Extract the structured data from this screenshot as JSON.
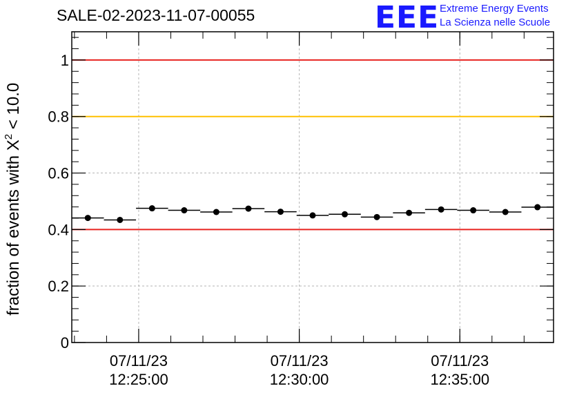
{
  "header": {
    "run_id": "SALE-02-2023-11-07-00055"
  },
  "logo": {
    "letters": "EEE",
    "line1": "Extreme Energy Events",
    "line2": "La Scienza nelle Scuole",
    "color": "#1a1aff"
  },
  "chart_data": {
    "type": "scatter",
    "ylabel": "fraction of events with χ² < 10.0",
    "ylabel_parts": {
      "prefix": "fraction of events with X",
      "sup": "2",
      "suffix": " < 10.0"
    },
    "ylim": [
      0,
      1.1
    ],
    "yticks": [
      0,
      0.2,
      0.4,
      0.6,
      0.8,
      1
    ],
    "ytick_labels": [
      "0",
      "0.2",
      "0.4",
      "0.6",
      "0.8",
      "1"
    ],
    "xlim": [
      "12:22:55",
      "12:37:55"
    ],
    "xticks": [
      {
        "time": "12:25:00",
        "label_date": "07/11/23",
        "label_time": "12:25:00"
      },
      {
        "time": "12:30:00",
        "label_date": "07/11/23",
        "label_time": "12:30:00"
      },
      {
        "time": "12:35:00",
        "label_date": "07/11/23",
        "label_time": "12:35:00"
      }
    ],
    "grid": true,
    "reference_lines": [
      {
        "y": 1.0,
        "color": "#e8231f"
      },
      {
        "y": 0.8,
        "color": "#ffc000"
      },
      {
        "y": 0.4,
        "color": "#e8231f"
      }
    ],
    "bin_width_minutes": 1,
    "points": [
      {
        "t": "12:23:25",
        "y": 0.441
      },
      {
        "t": "12:24:25",
        "y": 0.434
      },
      {
        "t": "12:25:25",
        "y": 0.475
      },
      {
        "t": "12:26:25",
        "y": 0.468
      },
      {
        "t": "12:27:25",
        "y": 0.462
      },
      {
        "t": "12:28:25",
        "y": 0.474
      },
      {
        "t": "12:29:25",
        "y": 0.463
      },
      {
        "t": "12:30:25",
        "y": 0.45
      },
      {
        "t": "12:31:25",
        "y": 0.454
      },
      {
        "t": "12:32:25",
        "y": 0.444
      },
      {
        "t": "12:33:25",
        "y": 0.459
      },
      {
        "t": "12:34:25",
        "y": 0.471
      },
      {
        "t": "12:35:25",
        "y": 0.468
      },
      {
        "t": "12:36:25",
        "y": 0.462
      },
      {
        "t": "12:37:25",
        "y": 0.479
      }
    ],
    "point_color": "#000000"
  }
}
